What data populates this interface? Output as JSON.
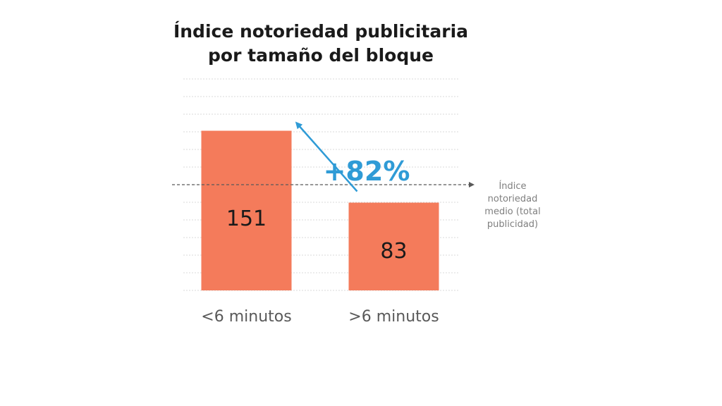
{
  "chart_data": {
    "type": "bar",
    "title_lines": [
      "Índice notoriedad publicitaria",
      "por tamaño del bloque"
    ],
    "categories": [
      "<6 minutos",
      ">6 minutos"
    ],
    "values": [
      151,
      83
    ],
    "ylim": [
      0,
      200
    ],
    "grid": true,
    "bar_color": "#f47b5b",
    "reference_line": {
      "value": 100,
      "label_lines": [
        "Índice",
        "notoriedad",
        "medio (total",
        "publicidad)"
      ]
    },
    "annotation": {
      "text": "+82%",
      "color": "#2f9bd6",
      "arrow_from_category": ">6 minutos",
      "arrow_to_category": "<6 minutos"
    }
  }
}
